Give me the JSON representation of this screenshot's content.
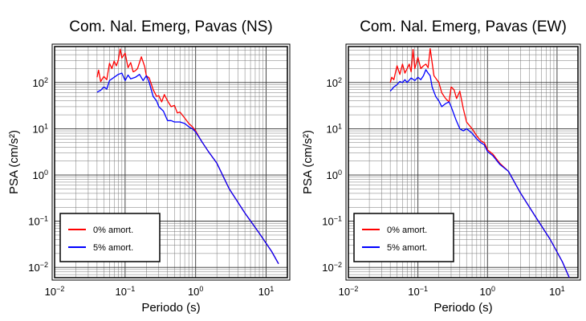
{
  "chart_data": [
    {
      "type": "line",
      "title": "Com. Nal. Emerg, Pavas (NS)",
      "xlabel": "Periodo (s)",
      "ylabel": "PSA (cm/s²)",
      "xscale": "log",
      "yscale": "log",
      "xlim": [
        0.01,
        20
      ],
      "ylim": [
        0.006,
        600
      ],
      "xticks": [
        "10^-2",
        "10^-1",
        "10^0",
        "10^1"
      ],
      "yticks": [
        "10^-2",
        "10^-1",
        "10^0",
        "10^1",
        "10^2"
      ],
      "grid": true,
      "legend": "bottom-left",
      "series": [
        {
          "name": "0% amort.",
          "color": "#ff0000",
          "x": [
            0.04,
            0.042,
            0.045,
            0.05,
            0.055,
            0.06,
            0.065,
            0.07,
            0.075,
            0.08,
            0.085,
            0.09,
            0.1,
            0.11,
            0.12,
            0.13,
            0.14,
            0.15,
            0.17,
            0.19,
            0.2,
            0.22,
            0.25,
            0.28,
            0.3,
            0.33,
            0.36,
            0.4,
            0.45,
            0.5,
            0.55,
            0.6,
            0.7,
            0.8,
            0.9,
            1.0,
            1.2,
            1.5,
            2.0,
            3.0,
            5.0,
            8.0,
            12.0,
            15.0
          ],
          "y": [
            130,
            185,
            105,
            135,
            115,
            260,
            200,
            290,
            230,
            300,
            530,
            340,
            430,
            210,
            270,
            170,
            180,
            200,
            360,
            220,
            140,
            125,
            70,
            50,
            52,
            38,
            55,
            40,
            30,
            32,
            22,
            23,
            17,
            13,
            11,
            9,
            5.5,
            3.3,
            1.8,
            0.5,
            0.15,
            0.055,
            0.022,
            0.012
          ]
        },
        {
          "name": "5% amort.",
          "color": "#0000ff",
          "x": [
            0.04,
            0.045,
            0.05,
            0.055,
            0.06,
            0.07,
            0.08,
            0.09,
            0.1,
            0.11,
            0.12,
            0.14,
            0.16,
            0.18,
            0.2,
            0.22,
            0.25,
            0.28,
            0.3,
            0.35,
            0.4,
            0.45,
            0.5,
            0.6,
            0.7,
            0.8,
            0.9,
            1.0,
            1.2,
            1.5,
            2.0,
            3.0,
            5.0,
            8.0,
            12.0,
            15.0
          ],
          "y": [
            62,
            68,
            80,
            72,
            110,
            130,
            150,
            160,
            110,
            145,
            120,
            130,
            150,
            110,
            140,
            100,
            50,
            40,
            30,
            24,
            15,
            15,
            14,
            14,
            13,
            11,
            10,
            8.5,
            5.5,
            3.3,
            1.8,
            0.5,
            0.15,
            0.055,
            0.022,
            0.012
          ]
        }
      ]
    },
    {
      "type": "line",
      "title": "Com. Nal. Emerg, Pavas (EW)",
      "xlabel": "Periodo (s)",
      "ylabel": "PSA (cm/s²)",
      "xscale": "log",
      "yscale": "log",
      "xlim": [
        0.01,
        20
      ],
      "ylim": [
        0.006,
        600
      ],
      "xticks": [
        "10^-2",
        "10^-1",
        "10^0",
        "10^1"
      ],
      "yticks": [
        "10^-2",
        "10^-1",
        "10^0",
        "10^1",
        "10^2"
      ],
      "grid": true,
      "legend": "bottom-left",
      "series": [
        {
          "name": "0% amort.",
          "color": "#ff0000",
          "x": [
            0.04,
            0.042,
            0.045,
            0.05,
            0.055,
            0.06,
            0.065,
            0.07,
            0.075,
            0.08,
            0.085,
            0.09,
            0.1,
            0.11,
            0.12,
            0.13,
            0.14,
            0.15,
            0.17,
            0.2,
            0.22,
            0.25,
            0.28,
            0.3,
            0.33,
            0.36,
            0.4,
            0.45,
            0.5,
            0.6,
            0.7,
            0.8,
            0.9,
            1.0,
            1.2,
            1.5,
            2.0,
            3.0,
            5.0,
            8.0,
            12.0,
            15.0
          ],
          "y": [
            100,
            130,
            115,
            230,
            150,
            250,
            160,
            200,
            250,
            170,
            520,
            200,
            350,
            200,
            230,
            250,
            210,
            540,
            140,
            100,
            60,
            45,
            38,
            80,
            70,
            45,
            65,
            27,
            14,
            10,
            7,
            5.5,
            5,
            3.5,
            2.8,
            1.8,
            1.2,
            0.4,
            0.12,
            0.04,
            0.013,
            0.006
          ]
        },
        {
          "name": "5% amort.",
          "color": "#0000ff",
          "x": [
            0.04,
            0.045,
            0.05,
            0.055,
            0.06,
            0.065,
            0.07,
            0.08,
            0.09,
            0.1,
            0.11,
            0.12,
            0.13,
            0.14,
            0.15,
            0.16,
            0.18,
            0.2,
            0.22,
            0.25,
            0.28,
            0.3,
            0.35,
            0.4,
            0.45,
            0.5,
            0.6,
            0.7,
            0.8,
            0.9,
            1.0,
            1.2,
            1.5,
            2.0,
            3.0,
            5.0,
            8.0,
            12.0,
            15.0
          ],
          "y": [
            65,
            80,
            90,
            105,
            100,
            115,
            100,
            125,
            110,
            130,
            115,
            140,
            190,
            160,
            140,
            80,
            50,
            40,
            30,
            35,
            38,
            30,
            16,
            10,
            9,
            10,
            8,
            6,
            5,
            4.5,
            3.2,
            2.6,
            1.7,
            1.2,
            0.4,
            0.12,
            0.04,
            0.013,
            0.006
          ]
        }
      ]
    }
  ]
}
